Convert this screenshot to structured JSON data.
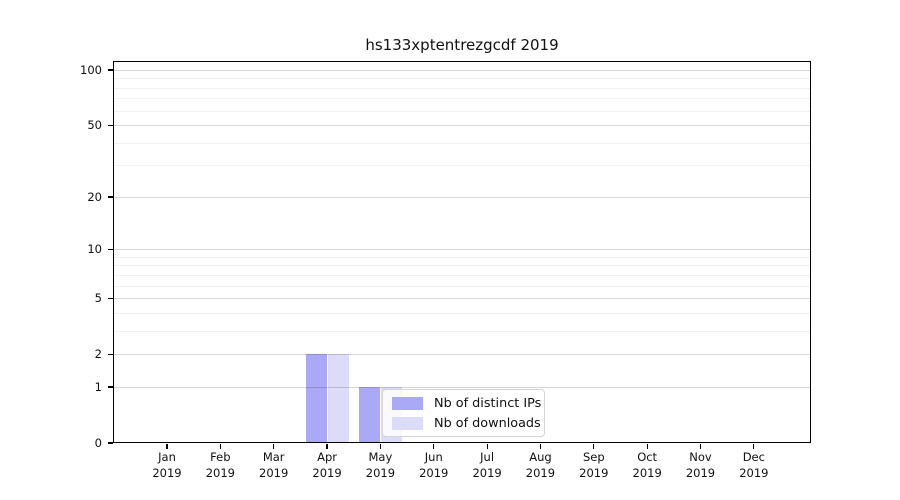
{
  "chart_data": {
    "type": "bar",
    "title": "hs133xptentrezgcdf 2019",
    "x_tick_labels": [
      [
        "Jan",
        "2019"
      ],
      [
        "Feb",
        "2019"
      ],
      [
        "Mar",
        "2019"
      ],
      [
        "Apr",
        "2019"
      ],
      [
        "May",
        "2019"
      ],
      [
        "Jun",
        "2019"
      ],
      [
        "Jul",
        "2019"
      ],
      [
        "Aug",
        "2019"
      ],
      [
        "Sep",
        "2019"
      ],
      [
        "Oct",
        "2019"
      ],
      [
        "Nov",
        "2019"
      ],
      [
        "Dec",
        "2019"
      ]
    ],
    "series": [
      {
        "name": "Nb of distinct IPs",
        "color": "#a9a9f6",
        "values": [
          0,
          0,
          0,
          2,
          1,
          0,
          0,
          0,
          0,
          0,
          0,
          0
        ]
      },
      {
        "name": "Nb of downloads",
        "color": "#dcdcf8",
        "values": [
          0,
          0,
          0,
          2,
          1,
          0,
          0,
          0,
          0,
          0,
          0,
          0
        ]
      }
    ],
    "y_axis": {
      "scale": "log(1+v)",
      "ticks": [
        0,
        1,
        2,
        5,
        10,
        20,
        50,
        100
      ],
      "minor_ticks": [
        3,
        4,
        6,
        7,
        8,
        9,
        30,
        40,
        60,
        70,
        80,
        90
      ],
      "range": [
        0,
        110
      ]
    },
    "grid": {
      "horizontal": true,
      "major_color": "#d9d9d9",
      "minor_color": "#f2f2f2"
    },
    "legend": {
      "position": "inside-lower-center",
      "border_color": "#d5d5d5",
      "background": "#fdfdfd"
    }
  }
}
